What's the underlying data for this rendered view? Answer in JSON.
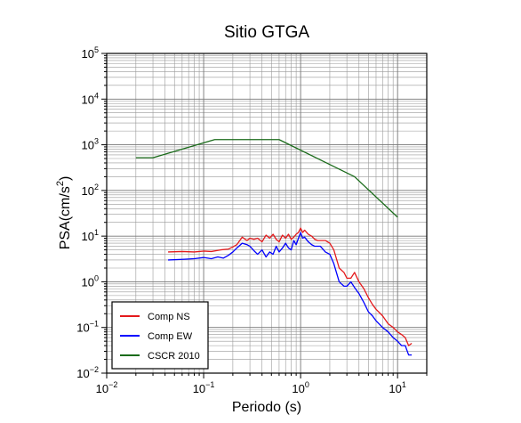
{
  "chart_data": {
    "type": "line",
    "title": "Sitio GTGA",
    "xlabel": "Periodo (s)",
    "ylabel_main": "PSA(cm/s",
    "ylabel_sup": "2",
    "ylabel_tail": ")",
    "xscale": "log",
    "yscale": "log",
    "xlim": [
      0.01,
      20
    ],
    "ylim": [
      0.01,
      100000
    ],
    "grid": true,
    "legend_position": "bottom-left",
    "x_ticks": [
      {
        "value": 0.01,
        "base": "10",
        "exp": "−2"
      },
      {
        "value": 0.1,
        "base": "10",
        "exp": "−1"
      },
      {
        "value": 1,
        "base": "10",
        "exp": "0"
      },
      {
        "value": 10,
        "base": "10",
        "exp": "1"
      }
    ],
    "y_ticks": [
      {
        "value": 0.01,
        "base": "10",
        "exp": "−2"
      },
      {
        "value": 0.1,
        "base": "10",
        "exp": "−1"
      },
      {
        "value": 1,
        "base": "10",
        "exp": "0"
      },
      {
        "value": 10,
        "base": "10",
        "exp": "1"
      },
      {
        "value": 100,
        "base": "10",
        "exp": "2"
      },
      {
        "value": 1000,
        "base": "10",
        "exp": "3"
      },
      {
        "value": 10000,
        "base": "10",
        "exp": "4"
      },
      {
        "value": 100000,
        "base": "10",
        "exp": "5"
      }
    ],
    "series": [
      {
        "name": "Comp NS",
        "color": "#e41a1c",
        "x": [
          0.043,
          0.06,
          0.08,
          0.1,
          0.12,
          0.15,
          0.18,
          0.2,
          0.22,
          0.25,
          0.28,
          0.3,
          0.33,
          0.36,
          0.4,
          0.44,
          0.48,
          0.52,
          0.56,
          0.6,
          0.65,
          0.7,
          0.75,
          0.8,
          0.85,
          0.9,
          0.95,
          1.0,
          1.05,
          1.1,
          1.2,
          1.3,
          1.4,
          1.5,
          1.6,
          1.8,
          2.0,
          2.2,
          2.5,
          2.8,
          3.0,
          3.3,
          3.6,
          4.0,
          4.5,
          5.0,
          5.5,
          6.0,
          7.0,
          8.0,
          9.0,
          10.0,
          11.0,
          12.0,
          13.0,
          14.0
        ],
        "y": [
          4.5,
          4.6,
          4.5,
          4.7,
          4.6,
          5.0,
          5.2,
          5.8,
          6.5,
          9.5,
          8.0,
          9.0,
          8.5,
          9.0,
          7.5,
          10.5,
          9.0,
          11.0,
          8.5,
          7.5,
          10.5,
          9.0,
          11.0,
          8.5,
          9.5,
          11.0,
          12.0,
          15.0,
          12.0,
          13.5,
          11.0,
          10.0,
          8.5,
          8.0,
          8.0,
          8.0,
          7.0,
          5.0,
          2.0,
          1.6,
          1.2,
          1.2,
          1.6,
          1.0,
          0.7,
          0.45,
          0.32,
          0.25,
          0.18,
          0.12,
          0.1,
          0.08,
          0.07,
          0.06,
          0.04,
          0.045
        ]
      },
      {
        "name": "Comp EW",
        "color": "#0000ff",
        "x": [
          0.043,
          0.06,
          0.08,
          0.1,
          0.12,
          0.14,
          0.16,
          0.18,
          0.2,
          0.22,
          0.25,
          0.28,
          0.3,
          0.33,
          0.36,
          0.4,
          0.44,
          0.48,
          0.52,
          0.56,
          0.6,
          0.65,
          0.7,
          0.75,
          0.8,
          0.85,
          0.9,
          0.95,
          1.0,
          1.05,
          1.1,
          1.2,
          1.3,
          1.4,
          1.5,
          1.6,
          1.8,
          2.0,
          2.2,
          2.5,
          2.8,
          3.0,
          3.3,
          3.6,
          4.0,
          4.5,
          5.0,
          5.5,
          6.0,
          7.0,
          8.0,
          9.0,
          10.0,
          11.0,
          12.0,
          13.0,
          14.0
        ],
        "y": [
          3.0,
          3.1,
          3.2,
          3.4,
          3.2,
          3.5,
          3.3,
          3.8,
          4.5,
          5.5,
          7.0,
          6.5,
          6.0,
          4.8,
          4.0,
          5.0,
          3.5,
          4.5,
          4.0,
          6.0,
          4.5,
          5.5,
          7.0,
          5.5,
          5.0,
          8.0,
          6.5,
          9.0,
          12.0,
          9.0,
          9.5,
          7.5,
          6.5,
          6.0,
          6.0,
          6.0,
          4.5,
          4.0,
          2.5,
          1.0,
          0.8,
          0.8,
          1.0,
          0.75,
          0.55,
          0.35,
          0.22,
          0.18,
          0.14,
          0.1,
          0.08,
          0.06,
          0.05,
          0.04,
          0.04,
          0.025,
          0.025
        ]
      },
      {
        "name": "CSCR 2010",
        "color": "#1a6b1a",
        "x": [
          0.02,
          0.03,
          0.13,
          0.6,
          3.6,
          10.0
        ],
        "y": [
          520,
          520,
          1300,
          1300,
          200,
          26
        ]
      }
    ]
  }
}
